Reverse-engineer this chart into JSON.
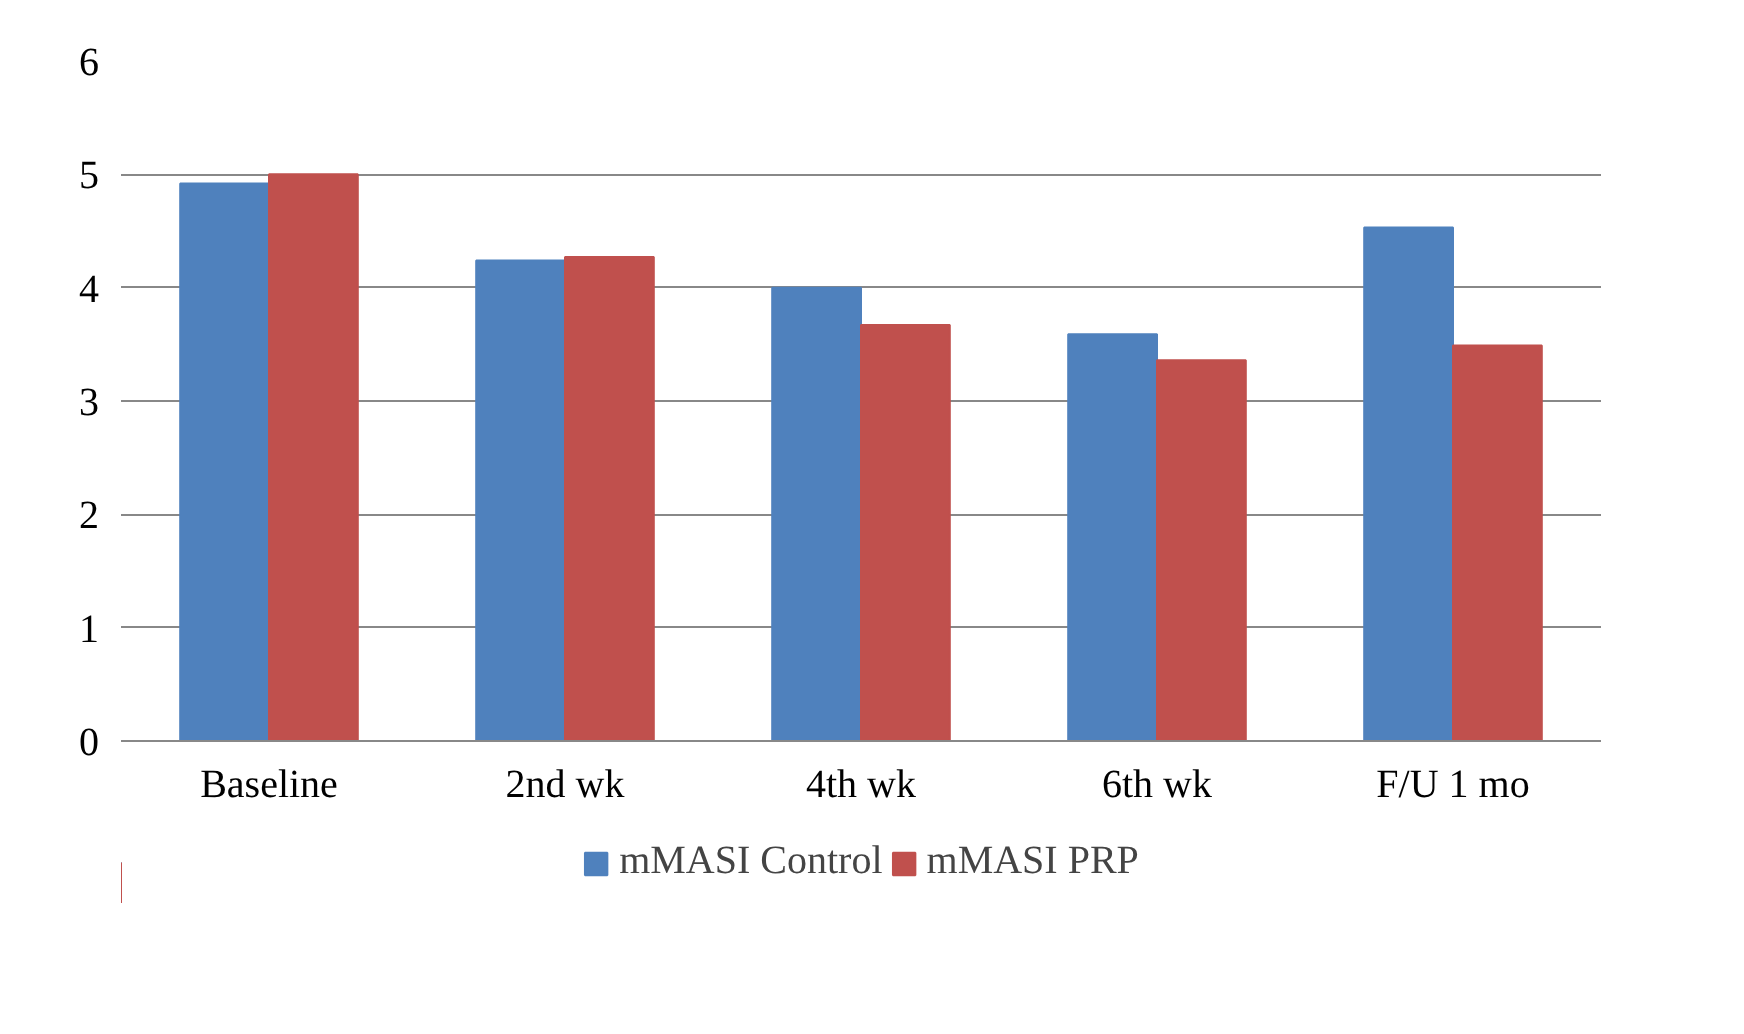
{
  "chart_data": {
    "type": "bar",
    "categories": [
      "Baseline",
      "2nd wk",
      "4th wk",
      "6th wk",
      "F/U 1 mo"
    ],
    "series": [
      {
        "name": "mMASI Control",
        "color": "#4f81bd",
        "values": [
          4.92,
          4.24,
          4.0,
          3.59,
          4.53
        ]
      },
      {
        "name": "mMASI PRP",
        "color": "#c0504d",
        "values": [
          5.0,
          4.27,
          3.67,
          3.36,
          3.49
        ]
      }
    ],
    "ylim": [
      0,
      6
    ],
    "yticks": [
      0,
      1,
      2,
      3,
      4,
      5,
      6
    ],
    "grid": "y",
    "legend": "bottom"
  }
}
